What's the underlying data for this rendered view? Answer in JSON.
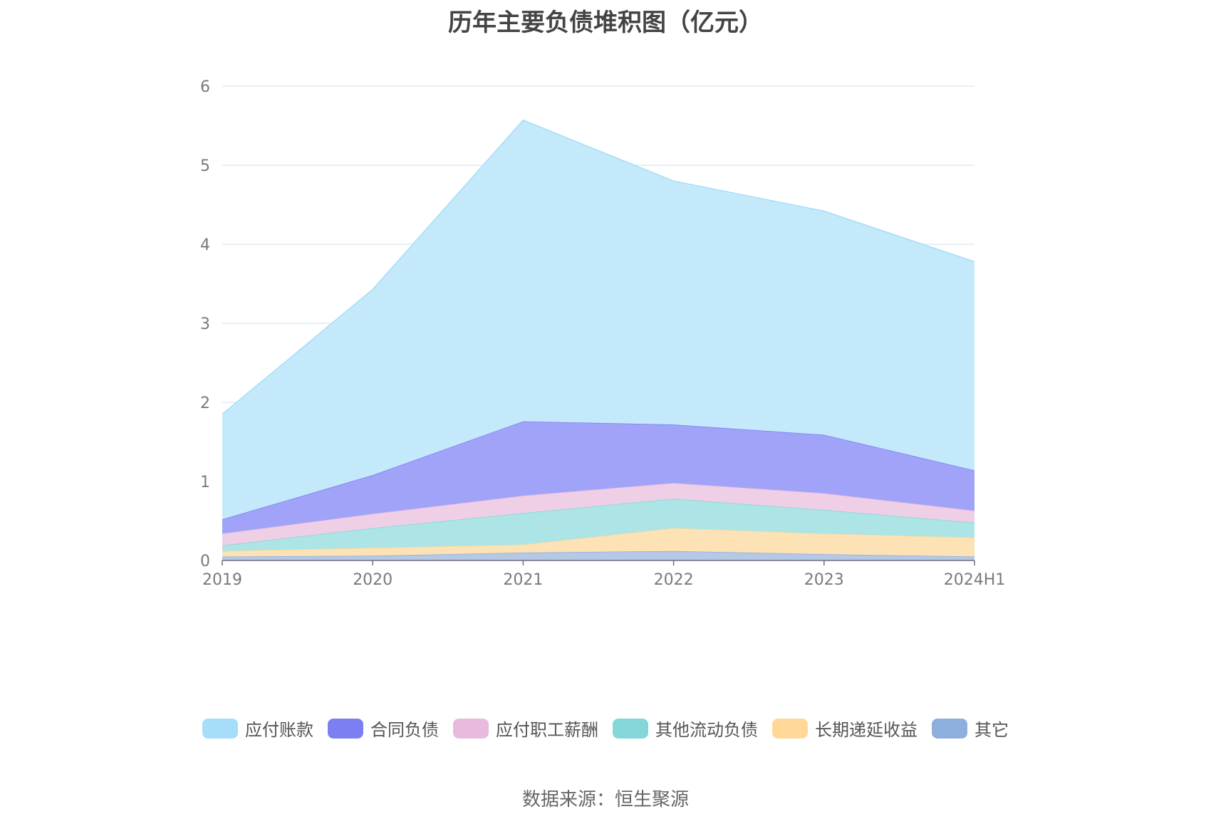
{
  "chart_data": {
    "type": "area",
    "stacked": true,
    "title": "历年主要负债堆积图（亿元）",
    "categories": [
      "2019",
      "2020",
      "2021",
      "2022",
      "2023",
      "2024H1"
    ],
    "y_ticks": [
      "0",
      "1",
      "2",
      "3",
      "4",
      "5",
      "6"
    ],
    "ylim": [
      0,
      6
    ],
    "grid": true,
    "legend_position": "bottom",
    "series": [
      {
        "name": "其它",
        "color": "#8eaedd",
        "fill": "#b5c8e6",
        "values": [
          0.05,
          0.06,
          0.1,
          0.12,
          0.08,
          0.05
        ]
      },
      {
        "name": "长期递延收益",
        "color": "#ffd898",
        "fill": "#fde2b6",
        "values": [
          0.07,
          0.1,
          0.1,
          0.29,
          0.26,
          0.24
        ]
      },
      {
        "name": "其他流动负债",
        "color": "#85d6d8",
        "fill": "#ade4e6",
        "values": [
          0.07,
          0.25,
          0.4,
          0.37,
          0.3,
          0.19
        ]
      },
      {
        "name": "应付职工薪酬",
        "color": "#e8bbdc",
        "fill": "#efcfe5",
        "values": [
          0.15,
          0.18,
          0.22,
          0.2,
          0.21,
          0.15
        ]
      },
      {
        "name": "合同负债",
        "color": "#7b7ff2",
        "fill": "#a1a3f8",
        "values": [
          0.18,
          0.49,
          0.94,
          0.74,
          0.74,
          0.51
        ]
      },
      {
        "name": "应付账款",
        "color": "#a6ddfa",
        "fill": "#c4e9fb",
        "values": [
          1.33,
          2.35,
          3.81,
          3.08,
          2.83,
          2.64
        ]
      }
    ]
  },
  "legend_order": [
    "应付账款",
    "合同负债",
    "应付职工薪酬",
    "其他流动负债",
    "长期递延收益",
    "其它"
  ],
  "source": "数据来源：恒生聚源"
}
